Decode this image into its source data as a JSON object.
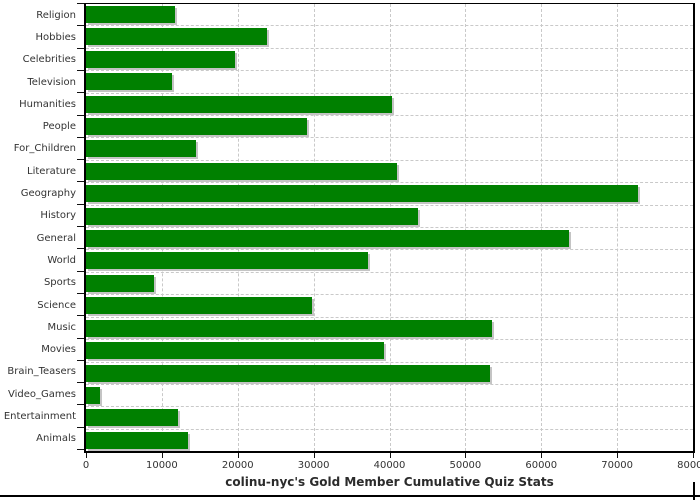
{
  "chart_data": {
    "type": "bar",
    "orientation": "horizontal",
    "title": "colinu-nyc's Gold Member Cumulative Quiz Stats",
    "categories": [
      "Religion",
      "Hobbies",
      "Celebrities",
      "Television",
      "Humanities",
      "People",
      "For_Children",
      "Literature",
      "Geography",
      "History",
      "General",
      "World",
      "Sports",
      "Science",
      "Music",
      "Movies",
      "Brain_Teasers",
      "Video_Games",
      "Entertainment",
      "Animals"
    ],
    "values": [
      11700,
      23800,
      19600,
      11300,
      40300,
      29100,
      14500,
      41000,
      72700,
      43800,
      63700,
      37200,
      8900,
      29800,
      53500,
      39300,
      53300,
      1900,
      12100,
      13400
    ],
    "xlim": [
      0,
      80000
    ],
    "x_tick_labels": [
      "0",
      "10000",
      "20000",
      "30000",
      "40000",
      "50000",
      "60000",
      "70000",
      "80000"
    ],
    "grid": "dashed",
    "legend_position": "none",
    "bar_color": "#008000",
    "bar_shadow_color": "#c4c4c4",
    "grid_color": "#c9c9c9",
    "axis_color": "#000000",
    "label_color": "#333333"
  }
}
